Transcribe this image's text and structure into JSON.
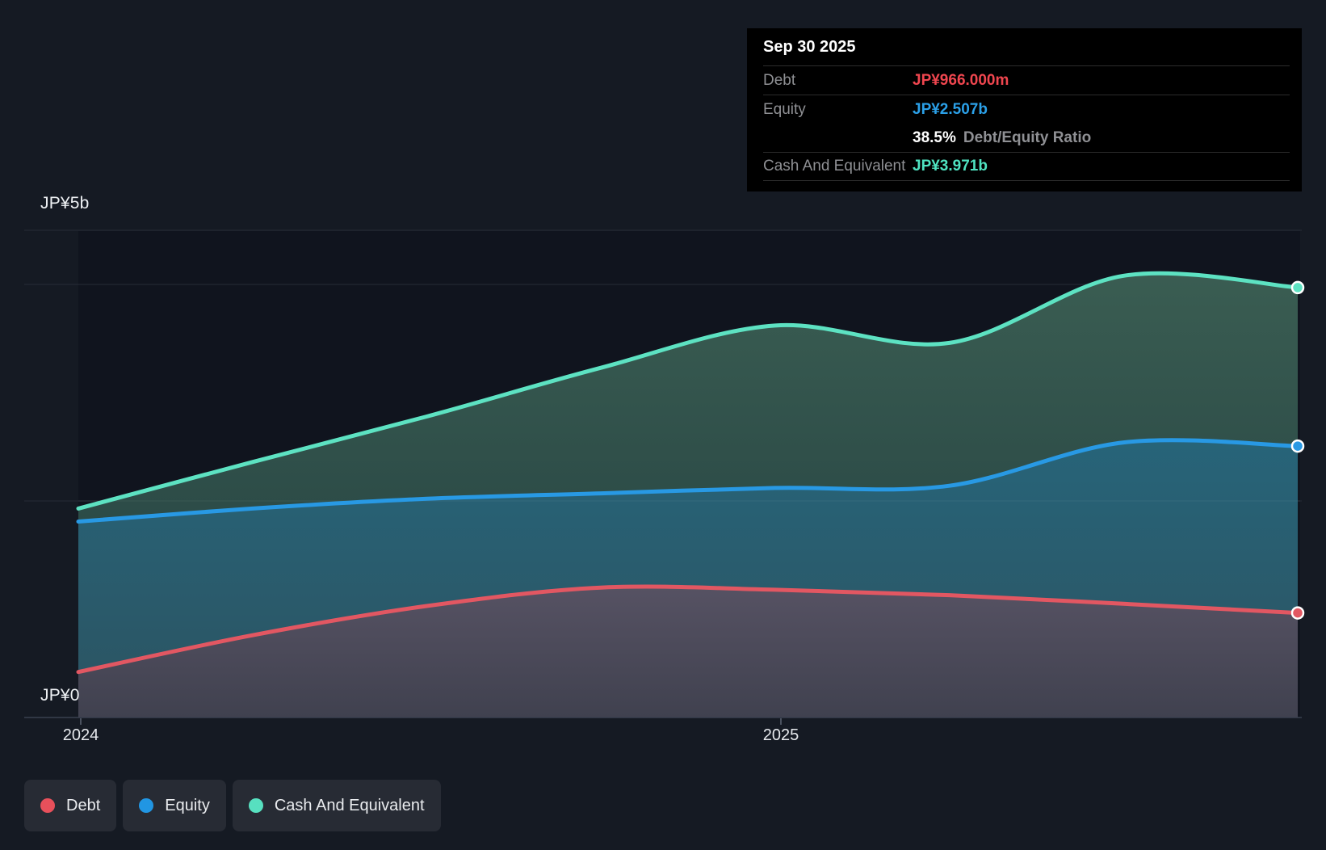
{
  "axis": {
    "y_top_label": "JP¥5b",
    "y_bottom_label": "JP¥0",
    "x_tick_labels": [
      "2024",
      "2025"
    ]
  },
  "tooltip": {
    "date": "Sep 30 2025",
    "debt_label": "Debt",
    "debt_value": "JP¥966.000m",
    "equity_label": "Equity",
    "equity_value": "JP¥2.507b",
    "ratio_value": "38.5%",
    "ratio_label": "Debt/Equity Ratio",
    "cash_label": "Cash And Equivalent",
    "cash_value": "JP¥3.971b",
    "colors": {
      "debt": "#f0464f",
      "equity": "#2ba0e8",
      "cash": "#4fe3c1"
    }
  },
  "legend": {
    "items": [
      {
        "label": "Debt",
        "color": "#e8505b"
      },
      {
        "label": "Equity",
        "color": "#2196e3"
      },
      {
        "label": "Cash And Equivalent",
        "color": "#57e0c0"
      }
    ]
  },
  "chart_data": {
    "type": "area",
    "unit": "JP¥ billions",
    "x": [
      "Dec 31 2023",
      "Mar 31 2024",
      "Jun 30 2024",
      "Sep 30 2024",
      "Dec 31 2024",
      "Mar 31 2025",
      "Jun 30 2025",
      "Sep 30 2025"
    ],
    "x_axis_ticks": [
      "2024",
      "2025"
    ],
    "ylim": [
      0,
      5
    ],
    "ylabel_top": "JP¥5b",
    "ylabel_bottom": "JP¥0",
    "gridlines_b": [
      4.5,
      4.0,
      2.0
    ],
    "grid": "horizontal-only",
    "legend_position": "bottom-left",
    "series": [
      {
        "name": "Debt",
        "color": "#e25762",
        "fill_top": "#565263",
        "fill_bottom": "#40414f",
        "values": [
          0.42,
          0.76,
          1.03,
          1.2,
          1.18,
          1.13,
          1.05,
          0.966
        ],
        "end_value_label": "JP¥966.000m"
      },
      {
        "name": "Equity",
        "color": "#2899e4",
        "fill_top": "#276479",
        "fill_bottom": "#2b5665",
        "values": [
          1.81,
          1.93,
          2.02,
          2.07,
          2.12,
          2.14,
          2.54,
          2.507
        ],
        "end_value_label": "JP¥2.507b"
      },
      {
        "name": "Cash And Equivalent",
        "color": "#5de2c2",
        "fill_top": "#3a5d52",
        "fill_bottom": "#2c4b47",
        "values": [
          1.93,
          2.36,
          2.78,
          3.23,
          3.62,
          3.46,
          4.08,
          3.971
        ],
        "end_value_label": "JP¥3.971b"
      }
    ],
    "debt_equity_ratio": "38.5%",
    "hovered_point": "Sep 30 2025"
  }
}
